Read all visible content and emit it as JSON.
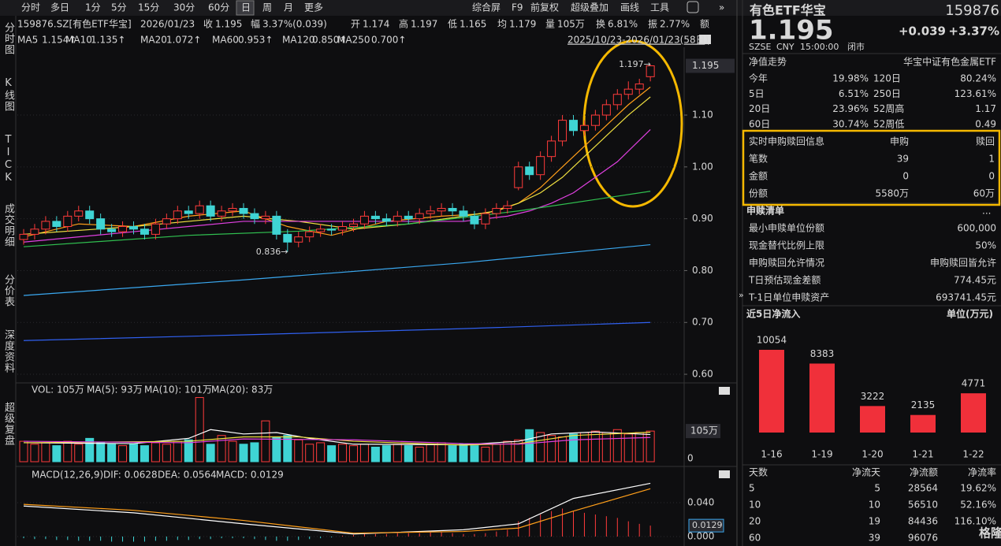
{
  "toolbar": {
    "left": [
      "分时",
      "多日",
      "1分",
      "5分",
      "15分",
      "30分",
      "60分",
      "日",
      "周",
      "月",
      "更多"
    ],
    "right": [
      "综合屏",
      "F9",
      "前复权",
      "超级叠加",
      "画线",
      "工具"
    ]
  },
  "side_tabs": [
    "分时图",
    "K线图",
    "TICK",
    "成交明细",
    "分价表",
    "深度资料",
    "超级复盘"
  ],
  "quote_bar": {
    "code": "159876.SZ[有色ETF华宝]",
    "date": "2026/01/23",
    "labels": [
      "收",
      "幅",
      "开",
      "高",
      "低",
      "均",
      "量",
      "换",
      "振",
      "额"
    ],
    "change": "3.37%(0.039)",
    "avg": "1.179",
    "volume": "105万",
    "turnover": "6.81%",
    "amplitude": "2.77%"
  },
  "chart_data": [
    {
      "type": "candlestick",
      "date_range": "2025/10/23-2026/01/23(58日)",
      "open": [
        0.86,
        0.87,
        0.88,
        0.895,
        0.885,
        0.905,
        0.915,
        0.9,
        0.88,
        0.875,
        0.885,
        0.88,
        0.87,
        0.89,
        0.9,
        0.915,
        0.91,
        0.925,
        0.905,
        0.915,
        0.92,
        0.91,
        0.9,
        0.905,
        0.87,
        0.855,
        0.865,
        0.875,
        0.88,
        0.878,
        0.885,
        0.89,
        0.905,
        0.9,
        0.895,
        0.905,
        0.9,
        0.91,
        0.915,
        0.92,
        0.915,
        0.905,
        0.89,
        0.91,
        0.92,
        0.96,
        1.0,
        0.985,
        1.02,
        1.05,
        1.09,
        1.07,
        1.08,
        1.1,
        1.12,
        1.14,
        1.15,
        1.174
      ],
      "close": [
        0.87,
        0.88,
        0.895,
        0.885,
        0.905,
        0.915,
        0.9,
        0.88,
        0.875,
        0.885,
        0.88,
        0.87,
        0.89,
        0.9,
        0.915,
        0.91,
        0.925,
        0.905,
        0.915,
        0.92,
        0.91,
        0.9,
        0.905,
        0.87,
        0.855,
        0.865,
        0.875,
        0.88,
        0.878,
        0.885,
        0.89,
        0.905,
        0.9,
        0.895,
        0.905,
        0.9,
        0.91,
        0.915,
        0.92,
        0.915,
        0.905,
        0.89,
        0.91,
        0.92,
        0.925,
        1.0,
        0.985,
        1.02,
        1.05,
        1.09,
        1.07,
        1.08,
        1.1,
        1.12,
        1.14,
        1.15,
        1.16,
        1.195
      ],
      "high": [
        0.88,
        0.89,
        0.905,
        0.905,
        0.915,
        0.925,
        0.925,
        0.91,
        0.89,
        0.895,
        0.895,
        0.89,
        0.9,
        0.91,
        0.925,
        0.925,
        0.935,
        0.935,
        0.925,
        0.93,
        0.93,
        0.92,
        0.915,
        0.915,
        0.88,
        0.875,
        0.885,
        0.89,
        0.89,
        0.895,
        0.9,
        0.915,
        0.915,
        0.91,
        0.915,
        0.915,
        0.92,
        0.925,
        0.93,
        0.93,
        0.925,
        0.915,
        0.92,
        0.93,
        0.935,
        1.01,
        1.01,
        1.03,
        1.06,
        1.1,
        1.1,
        1.09,
        1.11,
        1.13,
        1.15,
        1.165,
        1.17,
        1.197
      ],
      "low": [
        0.85,
        0.86,
        0.87,
        0.875,
        0.875,
        0.895,
        0.89,
        0.87,
        0.865,
        0.865,
        0.87,
        0.86,
        0.86,
        0.88,
        0.89,
        0.9,
        0.9,
        0.895,
        0.895,
        0.905,
        0.9,
        0.89,
        0.89,
        0.86,
        0.836,
        0.845,
        0.855,
        0.865,
        0.868,
        0.868,
        0.875,
        0.88,
        0.89,
        0.885,
        0.885,
        0.89,
        0.89,
        0.9,
        0.905,
        0.905,
        0.895,
        0.88,
        0.88,
        0.9,
        0.91,
        0.955,
        0.975,
        0.975,
        1.01,
        1.04,
        1.06,
        1.06,
        1.07,
        1.09,
        1.11,
        1.13,
        1.14,
        1.165
      ],
      "ylim": [
        0.58,
        1.23
      ],
      "yticks": [
        {
          "value": 0.6,
          "label": "0.60"
        },
        {
          "value": 0.7,
          "label": "0.70"
        },
        {
          "value": 0.8,
          "label": "0.80"
        },
        {
          "value": 0.9,
          "label": "0.90"
        },
        {
          "value": 1.0,
          "label": "1.00"
        },
        {
          "value": 1.1,
          "label": "1.10"
        }
      ],
      "ma": [
        {
          "name": "MA5",
          "label": "1.154↑",
          "color": "#ff9f1a",
          "x": [
            0,
            5,
            10,
            15,
            20,
            24,
            28,
            33,
            38,
            42,
            45,
            47,
            49,
            51,
            53,
            55,
            57
          ],
          "values": [
            0.865,
            0.89,
            0.885,
            0.905,
            0.915,
            0.885,
            0.868,
            0.895,
            0.905,
            0.91,
            0.93,
            0.96,
            1.0,
            1.04,
            1.08,
            1.12,
            1.154
          ]
        },
        {
          "name": "MA10",
          "label": "1.135↑",
          "color": "#f0e040",
          "x": [
            0,
            10,
            20,
            25,
            30,
            35,
            40,
            43,
            45,
            47,
            49,
            51,
            53,
            55,
            57
          ],
          "values": [
            0.87,
            0.885,
            0.905,
            0.895,
            0.88,
            0.89,
            0.905,
            0.915,
            0.93,
            0.95,
            0.98,
            1.02,
            1.06,
            1.1,
            1.135
          ]
        },
        {
          "name": "MA20",
          "label": "1.072↑",
          "color": "#e040e0",
          "x": [
            0,
            10,
            20,
            30,
            40,
            44,
            46,
            48,
            50,
            52,
            54,
            57
          ],
          "values": [
            0.855,
            0.875,
            0.895,
            0.895,
            0.895,
            0.905,
            0.915,
            0.93,
            0.95,
            0.98,
            1.01,
            1.072
          ]
        },
        {
          "name": "MA60",
          "label": "0.953↑",
          "color": "#30c050",
          "x": [
            0,
            15,
            25,
            35,
            45,
            57
          ],
          "values": [
            0.846,
            0.868,
            0.876,
            0.89,
            0.915,
            0.953
          ]
        },
        {
          "name": "MA120",
          "label": "0.850↑",
          "color": "#3aa8f0",
          "x": [
            0,
            20,
            40,
            57
          ],
          "values": [
            0.752,
            0.782,
            0.815,
            0.85
          ]
        },
        {
          "name": "MA250",
          "label": "0.700↑",
          "color": "#3060f0",
          "x": [
            0,
            20,
            40,
            57
          ],
          "values": [
            0.665,
            0.676,
            0.688,
            0.7
          ]
        }
      ],
      "annotations": [
        {
          "text": "1.197→",
          "index": 57,
          "value": 1.197
        },
        {
          "text": "0.836→",
          "index": 24,
          "value": 0.836
        }
      ]
    },
    {
      "type": "volume",
      "label": "VOL: 105万",
      "values": [
        70,
        60,
        65,
        55,
        70,
        60,
        80,
        65,
        60,
        55,
        60,
        55,
        65,
        60,
        70,
        75,
        220,
        60,
        90,
        70,
        60,
        65,
        140,
        85,
        90,
        75,
        60,
        65,
        55,
        60,
        55,
        60,
        50,
        55,
        60,
        55,
        50,
        60,
        65,
        55,
        60,
        55,
        50,
        60,
        70,
        75,
        110,
        100,
        90,
        85,
        95,
        100,
        105,
        100,
        110,
        95,
        100,
        105
      ],
      "ylim": [
        0,
        225
      ],
      "yticks": [
        0
      ],
      "tag": {
        "value": 105,
        "label": "105万"
      },
      "ma": [
        {
          "label": "MA(5): 93万",
          "color": "#ffffff",
          "x": [
            0,
            10,
            15,
            17,
            20,
            23,
            26,
            30,
            40,
            45,
            48,
            52,
            57
          ],
          "values": [
            65,
            62,
            80,
            110,
            95,
            100,
            80,
            60,
            58,
            70,
            95,
            102,
            93
          ]
        },
        {
          "label": "MA(10): 101万",
          "color": "#f0e040",
          "x": [
            0,
            15,
            20,
            25,
            30,
            40,
            45,
            50,
            57
          ],
          "values": [
            65,
            70,
            85,
            85,
            70,
            57,
            62,
            90,
            101
          ]
        },
        {
          "label": "MA(20): 83万",
          "color": "#e040e0",
          "x": [
            0,
            15,
            20,
            30,
            40,
            45,
            50,
            57
          ],
          "values": [
            70,
            65,
            78,
            75,
            62,
            60,
            75,
            83
          ]
        }
      ]
    },
    {
      "type": "macd",
      "label": "MACD(12,26,9)",
      "hist_label": "MACD: 0.0129",
      "hist": [
        -0.002,
        -0.003,
        -0.003,
        -0.004,
        -0.004,
        -0.005,
        -0.005,
        -0.005,
        -0.006,
        -0.006,
        -0.006,
        -0.006,
        -0.005,
        -0.005,
        -0.004,
        -0.004,
        -0.003,
        -0.003,
        -0.002,
        -0.002,
        -0.002,
        -0.003,
        -0.004,
        -0.005,
        -0.005,
        -0.004,
        -0.003,
        -0.002,
        -0.001,
        0.001,
        0.002,
        0.003,
        0.003,
        0.003,
        0.004,
        0.004,
        0.004,
        0.005,
        0.005,
        0.004,
        0.003,
        0.003,
        0.004,
        0.006,
        0.008,
        0.018,
        0.022,
        0.026,
        0.03,
        0.033,
        0.03,
        0.028,
        0.026,
        0.024,
        0.022,
        0.018,
        0.015,
        0.0129
      ],
      "dif": {
        "label": "DIF: 0.0628",
        "color": "#ffffff",
        "x": [
          0,
          10,
          20,
          30,
          40,
          45,
          50,
          57
        ],
        "values": [
          0.036,
          0.028,
          0.015,
          0.003,
          0.008,
          0.015,
          0.045,
          0.0628
        ]
      },
      "dea": {
        "label": "DEA: 0.0564",
        "color": "#ff9f1a",
        "x": [
          0,
          10,
          20,
          30,
          40,
          45,
          50,
          57
        ],
        "values": [
          0.038,
          0.031,
          0.019,
          0.004,
          0.006,
          0.01,
          0.03,
          0.0564
        ]
      },
      "ylim": [
        -0.008,
        0.065
      ],
      "yticks": [
        {
          "value": 0,
          "label": "0.000"
        },
        {
          "value": 0.04,
          "label": "0.040"
        }
      ]
    },
    {
      "type": "bar",
      "title": "近5日净流入",
      "unit": "单位(万元)",
      "categories": [
        "1-16",
        "1-19",
        "1-20",
        "1-21",
        "1-22"
      ],
      "values": [
        10054,
        8383,
        3222,
        2135,
        4771
      ],
      "color": "#f0303a",
      "ylim": [
        0,
        10054
      ]
    }
  ],
  "side_panel": {
    "name": "有色ETF华宝",
    "code": "159876",
    "change": "+0.039",
    "change_pct": "+3.37%",
    "meta": [
      "SZSE",
      "CNY",
      "15:00:00",
      "闭市"
    ],
    "nav_title": "净值走势",
    "index_name": "华宝中证有色金属ETF",
    "perf": [
      [
        "今年",
        "19.98%",
        "120日",
        "80.24%"
      ],
      [
        "5日",
        "6.51%",
        "250日",
        "123.61%"
      ],
      [
        "20日",
        "23.96%",
        "52周高",
        "1.17"
      ],
      [
        "60日",
        "30.74%",
        "52周低",
        "0.49"
      ]
    ],
    "realtime": {
      "title": "实时申购赎回信息",
      "cols": [
        "申购",
        "赎回"
      ],
      "rows": [
        [
          "笔数",
          "39",
          "1"
        ],
        [
          "金额",
          "0",
          "0"
        ],
        [
          "份额",
          "5580万",
          "60万"
        ]
      ]
    },
    "list_title": "申赎清单",
    "list_more": "...",
    "list": [
      [
        "最小申赎单位份额",
        "600,000"
      ],
      [
        "现金替代比例上限",
        "50%"
      ],
      [
        "申购赎回允许情况",
        "申购赎回皆允许"
      ],
      [
        "T日预估现金差额",
        "774.45元"
      ],
      [
        "T-1日单位申赎资产",
        "693741.45元"
      ]
    ],
    "flow_table": {
      "header": [
        "天数",
        "净流天",
        "净流额",
        "净流率"
      ],
      "rows": [
        [
          "5",
          "5",
          "28564",
          "19.62%"
        ],
        [
          "10",
          "10",
          "56510",
          "52.16%"
        ],
        [
          "20",
          "19",
          "84436",
          "116.10%"
        ],
        [
          "60",
          "39",
          "96076"
        ]
      ]
    },
    "watermark": "格隆汇"
  }
}
